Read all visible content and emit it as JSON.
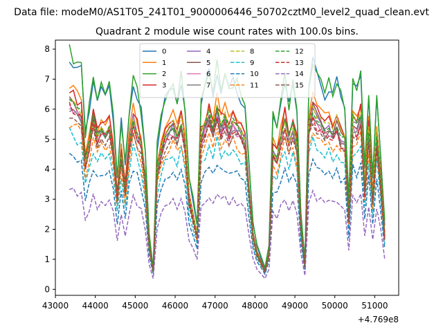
{
  "figure": {
    "suptitle": "Data file: modeM0/AS1T05_241T01_9000006446_50702cztM0_level2_quad_clean.evt"
  },
  "chart_data": {
    "type": "line",
    "title": "Quadrant 2 module wise count rates with 100.0s bins.",
    "xlabel": "",
    "ylabel": "",
    "x_offset_label": "+4.769e8",
    "xlim": [
      43000,
      51600
    ],
    "ylim": [
      -0.2,
      8.3
    ],
    "x_ticks": [
      43000,
      44000,
      45000,
      46000,
      47000,
      48000,
      49000,
      50000,
      51000
    ],
    "y_ticks": [
      0,
      1,
      2,
      3,
      4,
      5,
      6,
      7,
      8
    ],
    "grid": false,
    "legend_position": "upper-center",
    "legend_columns": 4,
    "shape_profile": {
      "x": [
        43350,
        43450,
        43550,
        43650,
        43750,
        43850,
        43950,
        44050,
        44150,
        44250,
        44350,
        44450,
        44550,
        44650,
        44750,
        44850,
        44950,
        45050,
        45150,
        45250,
        45350,
        45450,
        45550,
        45650,
        45750,
        45850,
        45950,
        46050,
        46150,
        46250,
        46350,
        46450,
        46550,
        46650,
        46750,
        46850,
        46950,
        47050,
        47150,
        47250,
        47350,
        47450,
        47550,
        47650,
        47750,
        47850,
        47950,
        48050,
        48150,
        48250,
        48350,
        48450,
        48550,
        48650,
        48750,
        48850,
        48950,
        49050,
        49150,
        49250,
        49350,
        49450,
        49550,
        49650,
        49750,
        49850,
        49950,
        50050,
        50150,
        50250,
        50350,
        50450,
        50550,
        50650,
        50750,
        50850,
        50950,
        51050,
        51150,
        51250
      ],
      "values": [
        1.0,
        0.98,
        0.95,
        0.93,
        0.65,
        0.75,
        0.9,
        0.8,
        0.85,
        0.82,
        0.88,
        0.72,
        0.45,
        0.7,
        0.5,
        0.75,
        0.9,
        0.82,
        0.75,
        0.55,
        0.2,
        0.05,
        0.6,
        0.72,
        0.8,
        0.82,
        0.85,
        0.8,
        0.88,
        0.75,
        0.45,
        0.35,
        0.25,
        0.78,
        0.85,
        0.92,
        0.82,
        0.95,
        0.85,
        0.9,
        0.82,
        0.88,
        0.85,
        0.82,
        0.78,
        0.5,
        0.25,
        0.15,
        0.1,
        0.05,
        0.15,
        0.72,
        0.68,
        0.8,
        0.88,
        0.78,
        0.85,
        0.75,
        0.3,
        0.08,
        0.85,
        0.95,
        0.9,
        0.88,
        0.84,
        0.86,
        0.82,
        0.87,
        0.8,
        0.78,
        0.35,
        0.88,
        0.85,
        0.9,
        0.5,
        0.82,
        0.45,
        0.8,
        0.55,
        0.25
      ]
    },
    "series": [
      {
        "name": "0",
        "color": "#1f77b4",
        "dash": "solid",
        "peak": 7.8,
        "base": 0.3,
        "amp": 0.22
      },
      {
        "name": "1",
        "color": "#ff7f0e",
        "dash": "solid",
        "peak": 6.7,
        "base": 0.3,
        "amp": 0.18
      },
      {
        "name": "2",
        "color": "#2ca02c",
        "dash": "solid",
        "peak": 7.9,
        "base": 0.35,
        "amp": 0.22
      },
      {
        "name": "3",
        "color": "#d62728",
        "dash": "solid",
        "peak": 6.6,
        "base": 0.3,
        "amp": 0.18
      },
      {
        "name": "4",
        "color": "#9467bd",
        "dash": "solid",
        "peak": 6.2,
        "base": 0.3,
        "amp": 0.16
      },
      {
        "name": "5",
        "color": "#8c564b",
        "dash": "solid",
        "peak": 6.3,
        "base": 0.3,
        "amp": 0.16
      },
      {
        "name": "6",
        "color": "#e377c2",
        "dash": "solid",
        "peak": 6.0,
        "base": 0.3,
        "amp": 0.16
      },
      {
        "name": "7",
        "color": "#7f7f7f",
        "dash": "solid",
        "peak": 6.1,
        "base": 0.3,
        "amp": 0.16
      },
      {
        "name": "8",
        "color": "#bcbd22",
        "dash": "dashed",
        "peak": 6.4,
        "base": 0.3,
        "amp": 0.17
      },
      {
        "name": "9",
        "color": "#17becf",
        "dash": "dashed",
        "peak": 5.2,
        "base": 0.3,
        "amp": 0.14
      },
      {
        "name": "10",
        "color": "#1f77b4",
        "dash": "dashed",
        "peak": 4.5,
        "base": 0.3,
        "amp": 0.12
      },
      {
        "name": "11",
        "color": "#ff7f0e",
        "dash": "dashed",
        "peak": 5.6,
        "base": 0.3,
        "amp": 0.15
      },
      {
        "name": "12",
        "color": "#2ca02c",
        "dash": "dashed",
        "peak": 6.3,
        "base": 0.3,
        "amp": 0.16
      },
      {
        "name": "13",
        "color": "#d62728",
        "dash": "dashed",
        "peak": 6.0,
        "base": 0.3,
        "amp": 0.16
      },
      {
        "name": "14",
        "color": "#9467bd",
        "dash": "dashed",
        "peak": 3.4,
        "base": 0.2,
        "amp": 0.1
      },
      {
        "name": "15",
        "color": "#8c564b",
        "dash": "dashed",
        "peak": 5.9,
        "base": 0.3,
        "amp": 0.16
      }
    ]
  }
}
